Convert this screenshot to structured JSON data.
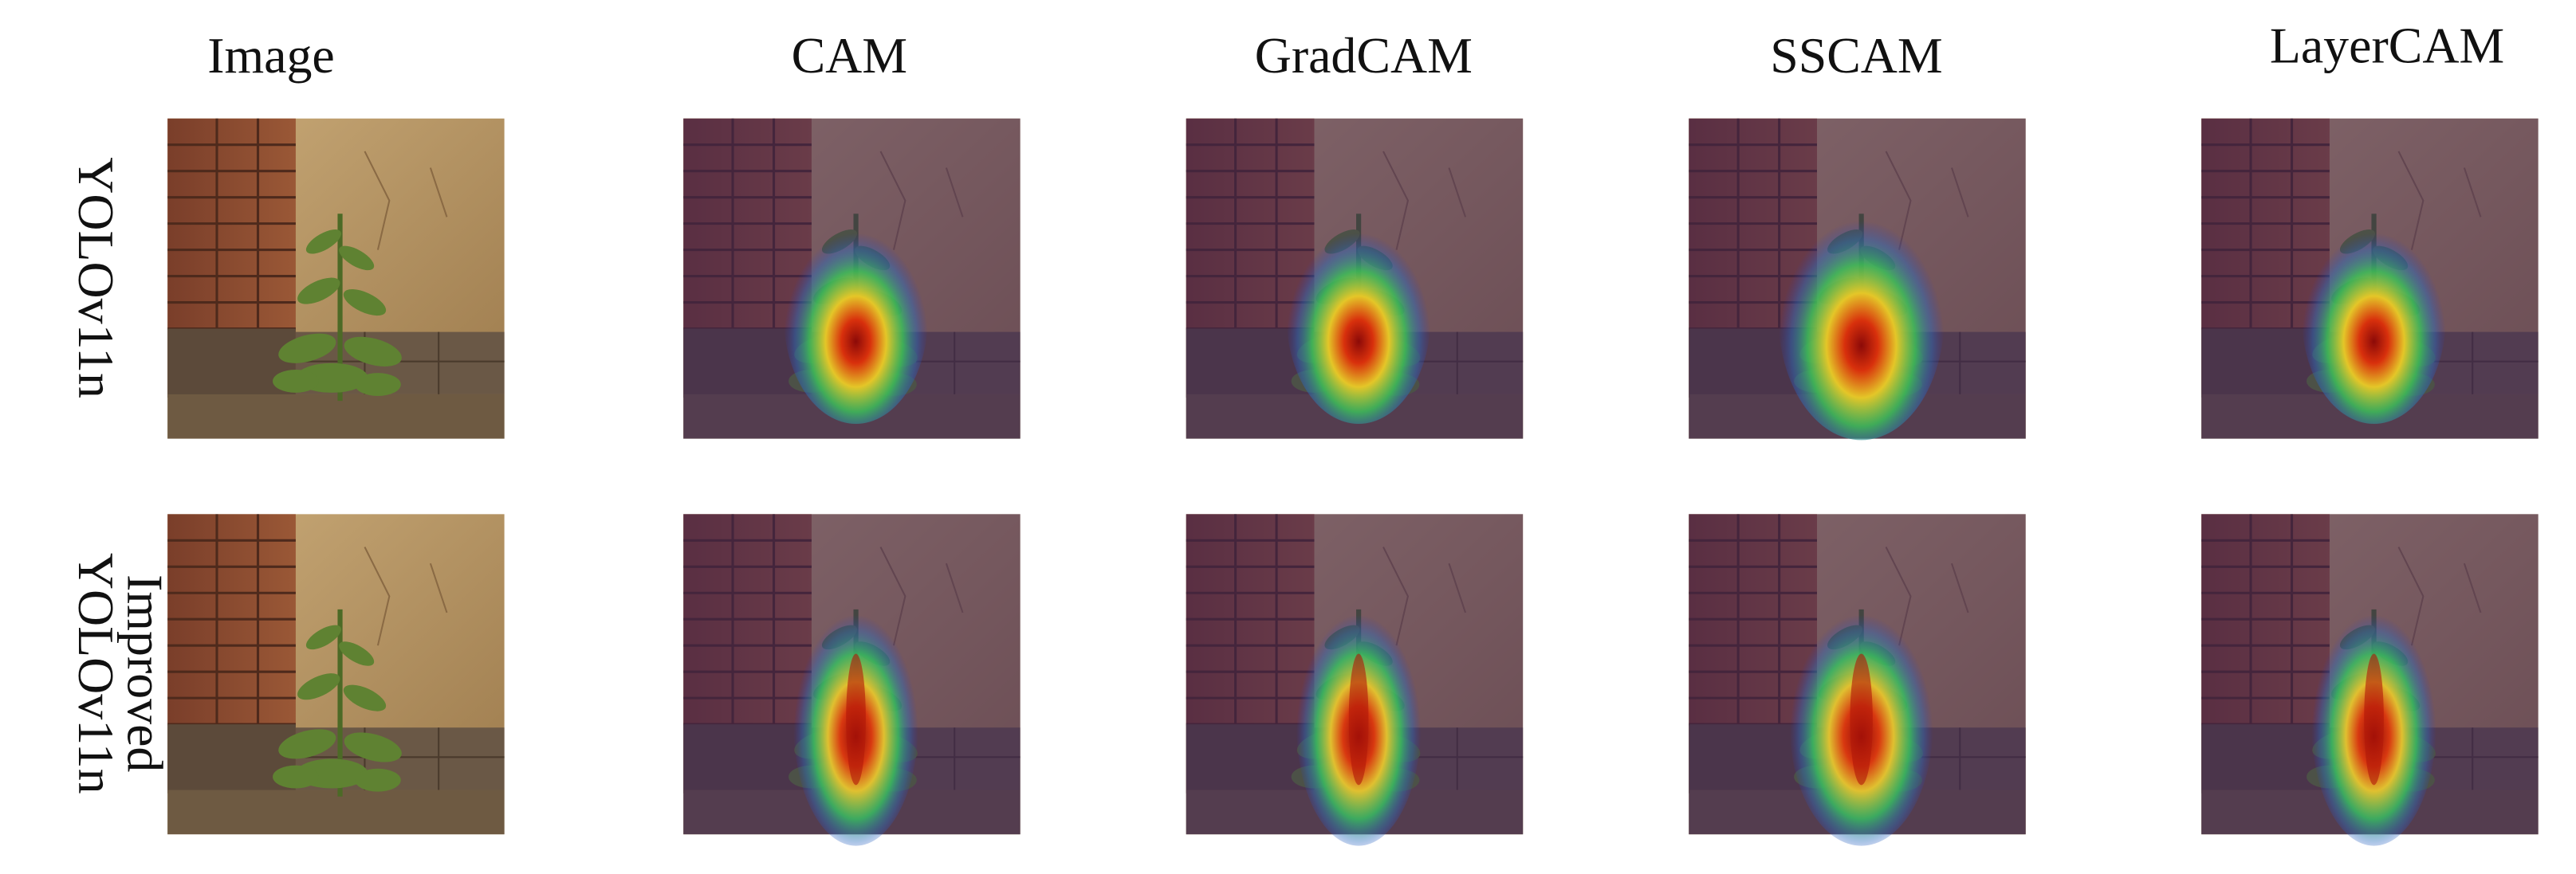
{
  "columns": [
    "Image",
    "CAM",
    "GradCAM",
    "SSCAM",
    "LayerCAM"
  ],
  "rows": [
    {
      "label_lines": [
        "YOLOv11n"
      ]
    },
    {
      "label_lines": [
        "Improved",
        "YOLOv11n"
      ]
    }
  ]
}
